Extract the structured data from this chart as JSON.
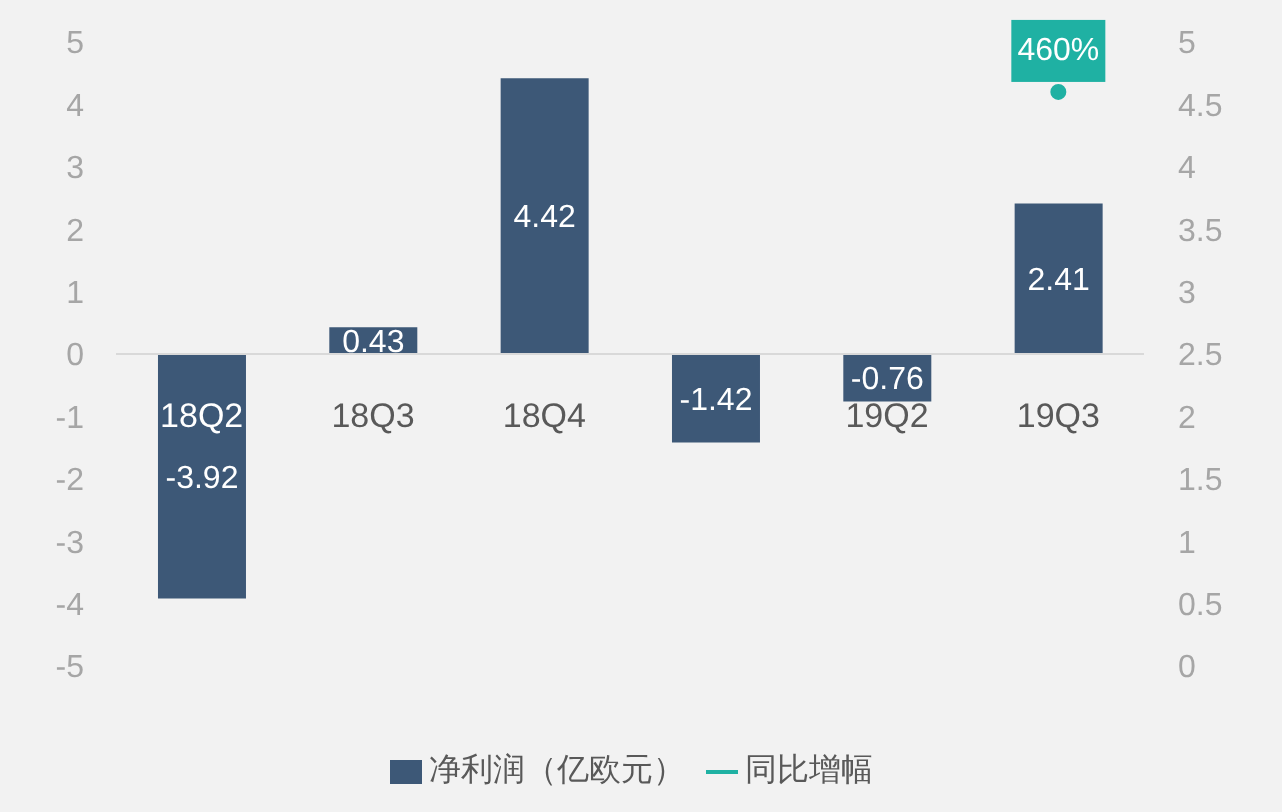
{
  "chart_data": {
    "type": "bar",
    "categories": [
      "18Q2",
      "18Q3",
      "18Q4",
      null,
      "19Q2",
      "19Q3"
    ],
    "series": [
      {
        "name": "净利润（亿欧元）",
        "color": "#3d5877",
        "values": [
          -3.92,
          0.43,
          4.42,
          -1.42,
          -0.76,
          2.41
        ],
        "value_labels": [
          "-3.92",
          "0.43",
          "4.42",
          "-1.42",
          "-0.76",
          "2.41"
        ]
      },
      {
        "name": "同比增幅",
        "type": "line",
        "axis": "y2",
        "color": "#1fb1a3",
        "marker": "circle",
        "values": [
          null,
          null,
          null,
          null,
          null,
          4.6
        ],
        "value_labels": [
          null,
          null,
          null,
          null,
          null,
          "460%"
        ]
      }
    ],
    "ylim": [
      -5,
      5
    ],
    "yticks": [
      -5,
      -4,
      -3,
      -2,
      -1,
      0,
      1,
      2,
      3,
      4,
      5
    ],
    "y2lim": [
      0,
      5
    ],
    "y2ticks": [
      0,
      0.5,
      1,
      1.5,
      2,
      2.5,
      3,
      3.5,
      4,
      4.5,
      5
    ],
    "legend": "bottom"
  }
}
